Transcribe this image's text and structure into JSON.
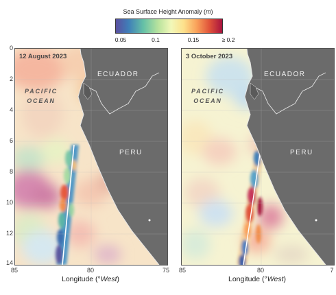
{
  "colorbar": {
    "title_prefix": "Sea Surface Height Anomaly (",
    "title_unit": "m",
    "title_suffix": ")",
    "ticks": [
      "0.05",
      "0.1",
      "0.15",
      "≥ 0.2"
    ],
    "colors": [
      "#5a4fa0",
      "#3f7fb8",
      "#66c1a6",
      "#b9e39d",
      "#f2f8b9",
      "#fde08b",
      "#f9a15a",
      "#e0533a",
      "#a8133e"
    ]
  },
  "axes": {
    "latitude_ticks": [
      "0",
      "2",
      "4",
      "6",
      "8",
      "10",
      "12",
      "14"
    ],
    "left_lon_ticks": [
      "85",
      "80",
      "75"
    ],
    "right_lon_ticks": [
      "85",
      "80",
      "7"
    ],
    "xtitle_prefix": "Longitude (°",
    "xtitle_unit": "West",
    "xtitle_suffix": ")"
  },
  "panels": [
    {
      "date": "12 August 2023",
      "country_1": "ECUADOR",
      "country_2": "PERU",
      "ocean_1": "PACIFIC",
      "ocean_2": "OCEAN"
    },
    {
      "date": "3 October 2023",
      "country_1": "ECUADOR",
      "country_2": "PERU",
      "ocean_1": "PACIFIC",
      "ocean_2": "OCEAN"
    }
  ],
  "map_colors": {
    "land": "#6b6b6b",
    "coastline": "#e6e6e6"
  }
}
